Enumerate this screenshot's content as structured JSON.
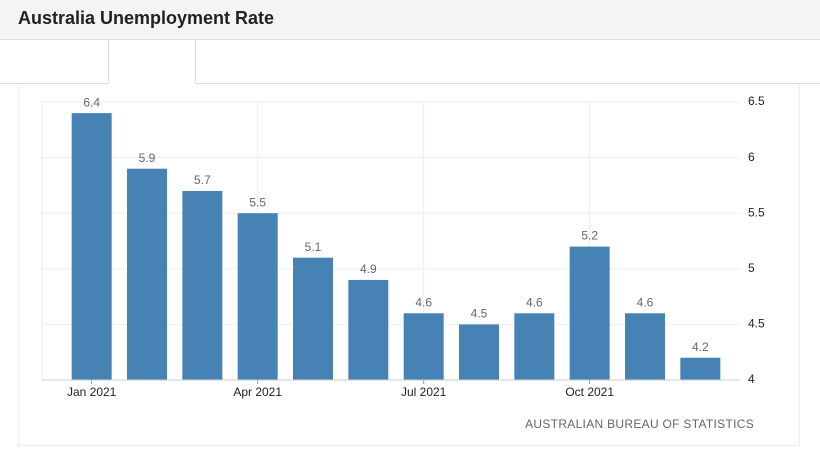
{
  "header": {
    "title": "Australia Unemployment Rate"
  },
  "chart_data": {
    "type": "bar",
    "categories": [
      "Jan 2021",
      null,
      null,
      "Apr 2021",
      null,
      null,
      "Jul 2021",
      null,
      null,
      "Oct 2021",
      null,
      null
    ],
    "values": [
      6.4,
      5.9,
      5.7,
      5.5,
      5.1,
      4.9,
      4.6,
      4.5,
      4.6,
      5.2,
      4.6,
      4.2
    ],
    "color": "#4682b4",
    "ylim": [
      4,
      6.5
    ],
    "yticks": [
      4,
      4.5,
      5,
      5.5,
      6,
      6.5
    ],
    "y_axis_side": "right",
    "grid": true,
    "source": "AUSTRALIAN BUREAU OF STATISTICS"
  }
}
